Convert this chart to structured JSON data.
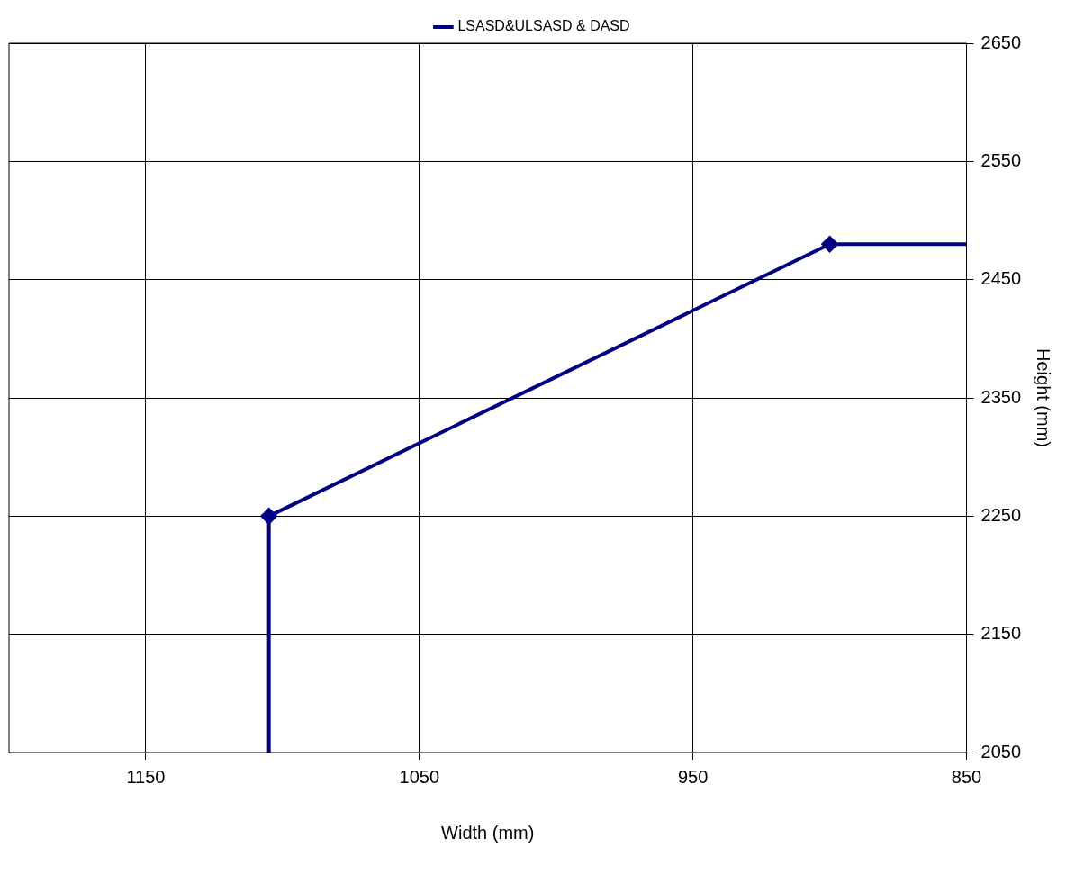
{
  "chart_data": {
    "type": "line",
    "xlabel": "Width (mm)",
    "ylabel": "Height (mm)",
    "x": [
      1105,
      1105,
      900,
      850
    ],
    "series": [
      {
        "name": "LSASD&ULSASD & DASD",
        "color": "#000080",
        "values": [
          2050,
          2250,
          2480,
          2480
        ]
      }
    ],
    "xlim": [
      1200,
      850
    ],
    "xticks": [
      1150,
      1050,
      950,
      850
    ],
    "ylim": [
      2050,
      2650
    ],
    "yticks": [
      2050,
      2150,
      2250,
      2350,
      2450,
      2550,
      2650
    ],
    "grid": true,
    "legend": "top",
    "marker": "diamond",
    "line_style": "solid"
  }
}
